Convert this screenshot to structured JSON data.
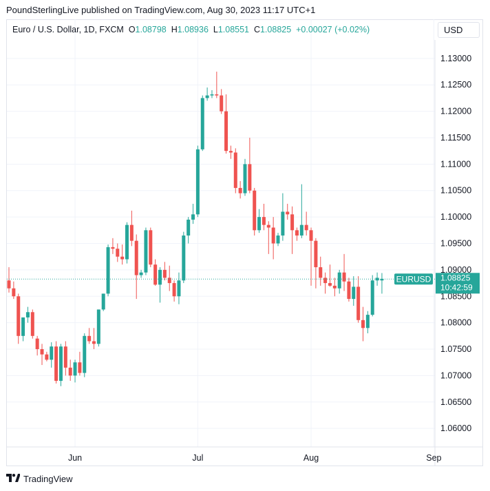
{
  "header": {
    "publisher": "PoundSterlingLive published on TradingView.com, Aug 30, 2023 11:17 UTC+1"
  },
  "legend": {
    "symbol": "Euro / U.S. Dollar, 1D, FXCM",
    "o_label": "O",
    "o_value": "1.08798",
    "h_label": "H",
    "h_value": "1.08936",
    "l_label": "L",
    "l_value": "1.08551",
    "c_label": "C",
    "c_value": "1.08825",
    "change": "+0.00027 (+0.02%)"
  },
  "currency_button": "USD",
  "price_tag": {
    "symbol": "EURUSD",
    "price": "1.08825",
    "countdown": "10:42:59"
  },
  "footer": {
    "brand": "TradingView",
    "logo_icon": "tradingview-logo-icon"
  },
  "colors": {
    "up": "#26a69a",
    "down": "#ef5350",
    "grid": "#f0f3fa",
    "text": "#131722"
  },
  "chart_data": {
    "type": "candlestick",
    "ylim": [
      1.0565,
      1.1335
    ],
    "yticks": [
      "1.13000",
      "1.12500",
      "1.12000",
      "1.11500",
      "1.11000",
      "1.10500",
      "1.10000",
      "1.09500",
      "1.09000",
      "1.08500",
      "1.08000",
      "1.07500",
      "1.07000",
      "1.06500",
      "1.06000"
    ],
    "xticks": [
      {
        "label": "Jun",
        "index": 14
      },
      {
        "label": "Jul",
        "index": 40
      },
      {
        "label": "Aug",
        "index": 64
      },
      {
        "label": "Sep",
        "index": 90
      }
    ],
    "last_price": 1.08825,
    "candles": [
      {
        "o": 1.088,
        "h": 1.0905,
        "l": 1.0857,
        "c": 1.0865
      },
      {
        "o": 1.0865,
        "h": 1.0878,
        "l": 1.0845,
        "c": 1.085
      },
      {
        "o": 1.085,
        "h": 1.0855,
        "l": 1.076,
        "c": 1.0775
      },
      {
        "o": 1.0775,
        "h": 1.081,
        "l": 1.0765,
        "c": 1.081
      },
      {
        "o": 1.081,
        "h": 1.083,
        "l": 1.08,
        "c": 1.082
      },
      {
        "o": 1.082,
        "h": 1.0825,
        "l": 1.077,
        "c": 1.0775
      },
      {
        "o": 1.077,
        "h": 1.0775,
        "l": 1.0738,
        "c": 1.075
      },
      {
        "o": 1.075,
        "h": 1.076,
        "l": 1.072,
        "c": 1.074
      },
      {
        "o": 1.074,
        "h": 1.0745,
        "l": 1.0727,
        "c": 1.073
      },
      {
        "o": 1.073,
        "h": 1.0763,
        "l": 1.0715,
        "c": 1.0755
      },
      {
        "o": 1.0755,
        "h": 1.0765,
        "l": 1.0685,
        "c": 1.069
      },
      {
        "o": 1.069,
        "h": 1.076,
        "l": 1.068,
        "c": 1.0755
      },
      {
        "o": 1.0755,
        "h": 1.0765,
        "l": 1.07,
        "c": 1.0715
      },
      {
        "o": 1.0715,
        "h": 1.073,
        "l": 1.069,
        "c": 1.07
      },
      {
        "o": 1.07,
        "h": 1.073,
        "l": 1.0687,
        "c": 1.0725
      },
      {
        "o": 1.0725,
        "h": 1.0745,
        "l": 1.07,
        "c": 1.0705
      },
      {
        "o": 1.0705,
        "h": 1.078,
        "l": 1.0697,
        "c": 1.0775
      },
      {
        "o": 1.0775,
        "h": 1.079,
        "l": 1.076,
        "c": 1.0765
      },
      {
        "o": 1.0765,
        "h": 1.079,
        "l": 1.075,
        "c": 1.076
      },
      {
        "o": 1.076,
        "h": 1.0825,
        "l": 1.0755,
        "c": 1.0825
      },
      {
        "o": 1.0825,
        "h": 1.0855,
        "l": 1.0822,
        "c": 1.0855
      },
      {
        "o": 1.0855,
        "h": 1.0948,
        "l": 1.085,
        "c": 1.0943
      },
      {
        "o": 1.0943,
        "h": 1.096,
        "l": 1.093,
        "c": 1.094
      },
      {
        "o": 1.094,
        "h": 1.095,
        "l": 1.0915,
        "c": 1.0925
      },
      {
        "o": 1.0925,
        "h": 1.0948,
        "l": 1.091,
        "c": 1.092
      },
      {
        "o": 1.092,
        "h": 1.099,
        "l": 1.0912,
        "c": 1.0985
      },
      {
        "o": 1.0985,
        "h": 1.1012,
        "l": 1.0945,
        "c": 1.0955
      },
      {
        "o": 1.0955,
        "h": 1.0967,
        "l": 1.0845,
        "c": 1.089
      },
      {
        "o": 1.089,
        "h": 1.09,
        "l": 1.0885,
        "c": 1.0895
      },
      {
        "o": 1.0895,
        "h": 1.098,
        "l": 1.089,
        "c": 1.0975
      },
      {
        "o": 1.0975,
        "h": 1.098,
        "l": 1.0905,
        "c": 1.091
      },
      {
        "o": 1.091,
        "h": 1.092,
        "l": 1.087,
        "c": 1.0872
      },
      {
        "o": 1.0872,
        "h": 1.0905,
        "l": 1.0838,
        "c": 1.09
      },
      {
        "o": 1.09,
        "h": 1.0915,
        "l": 1.088,
        "c": 1.0885
      },
      {
        "o": 1.0885,
        "h": 1.0908,
        "l": 1.086,
        "c": 1.0875
      },
      {
        "o": 1.0875,
        "h": 1.088,
        "l": 1.084,
        "c": 1.085
      },
      {
        "o": 1.085,
        "h": 1.0895,
        "l": 1.0835,
        "c": 1.088
      },
      {
        "o": 1.088,
        "h": 1.0972,
        "l": 1.0875,
        "c": 1.0965
      },
      {
        "o": 1.0965,
        "h": 1.1,
        "l": 1.095,
        "c": 1.0995
      },
      {
        "o": 1.0995,
        "h": 1.1025,
        "l": 1.0987,
        "c": 1.1005
      },
      {
        "o": 1.1005,
        "h": 1.1135,
        "l": 1.1,
        "c": 1.1128
      },
      {
        "o": 1.1128,
        "h": 1.123,
        "l": 1.1125,
        "c": 1.1225
      },
      {
        "o": 1.1225,
        "h": 1.1245,
        "l": 1.122,
        "c": 1.123
      },
      {
        "o": 1.123,
        "h": 1.124,
        "l": 1.1225,
        "c": 1.1232
      },
      {
        "o": 1.1232,
        "h": 1.1275,
        "l": 1.1225,
        "c": 1.123
      },
      {
        "o": 1.123,
        "h": 1.1242,
        "l": 1.1195,
        "c": 1.12
      },
      {
        "o": 1.12,
        "h": 1.1232,
        "l": 1.112,
        "c": 1.1125
      },
      {
        "o": 1.1125,
        "h": 1.1135,
        "l": 1.111,
        "c": 1.1122
      },
      {
        "o": 1.1122,
        "h": 1.113,
        "l": 1.1045,
        "c": 1.1055
      },
      {
        "o": 1.1055,
        "h": 1.1068,
        "l": 1.1035,
        "c": 1.1045
      },
      {
        "o": 1.1045,
        "h": 1.111,
        "l": 1.104,
        "c": 1.11
      },
      {
        "o": 1.11,
        "h": 1.115,
        "l": 1.1045,
        "c": 1.105
      },
      {
        "o": 1.105,
        "h": 1.1055,
        "l": 1.0965,
        "c": 1.0975
      },
      {
        "o": 1.0975,
        "h": 1.1015,
        "l": 1.097,
        "c": 1.1
      },
      {
        "o": 1.1,
        "h": 1.1025,
        "l": 1.0975,
        "c": 1.0985
      },
      {
        "o": 1.0985,
        "h": 1.0992,
        "l": 1.093,
        "c": 1.098
      },
      {
        "o": 1.098,
        "h": 1.1,
        "l": 1.092,
        "c": 1.095
      },
      {
        "o": 1.095,
        "h": 1.097,
        "l": 1.0945,
        "c": 1.0965
      },
      {
        "o": 1.0965,
        "h": 1.1045,
        "l": 1.0955,
        "c": 1.101
      },
      {
        "o": 1.101,
        "h": 1.1025,
        "l": 1.0995,
        "c": 1.1005
      },
      {
        "o": 1.1005,
        "h": 1.102,
        "l": 1.093,
        "c": 1.0975
      },
      {
        "o": 1.0975,
        "h": 1.098,
        "l": 1.0955,
        "c": 1.0965
      },
      {
        "o": 1.0965,
        "h": 1.1062,
        "l": 1.096,
        "c": 1.0985
      },
      {
        "o": 1.0985,
        "h": 1.101,
        "l": 1.0965,
        "c": 1.0975
      },
      {
        "o": 1.0975,
        "h": 1.098,
        "l": 1.087,
        "c": 1.0955
      },
      {
        "o": 1.0955,
        "h": 1.096,
        "l": 1.0865,
        "c": 1.0905
      },
      {
        "o": 1.0905,
        "h": 1.0925,
        "l": 1.087,
        "c": 1.0885
      },
      {
        "o": 1.0885,
        "h": 1.0895,
        "l": 1.0855,
        "c": 1.0875
      },
      {
        "o": 1.0875,
        "h": 1.091,
        "l": 1.0868,
        "c": 1.087
      },
      {
        "o": 1.087,
        "h": 1.0885,
        "l": 1.085,
        "c": 1.0865
      },
      {
        "o": 1.0865,
        "h": 1.09,
        "l": 1.0855,
        "c": 1.0895
      },
      {
        "o": 1.0895,
        "h": 1.093,
        "l": 1.086,
        "c": 1.0878
      },
      {
        "o": 1.0878,
        "h": 1.0885,
        "l": 1.084,
        "c": 1.0845
      },
      {
        "o": 1.0845,
        "h": 1.0888,
        "l": 1.0832,
        "c": 1.0868
      },
      {
        "o": 1.0868,
        "h": 1.0888,
        "l": 1.08,
        "c": 1.0805
      },
      {
        "o": 1.0805,
        "h": 1.083,
        "l": 1.0765,
        "c": 1.079
      },
      {
        "o": 1.079,
        "h": 1.0822,
        "l": 1.078,
        "c": 1.0815
      },
      {
        "o": 1.0815,
        "h": 1.089,
        "l": 1.0812,
        "c": 1.088
      },
      {
        "o": 1.088,
        "h": 1.0895,
        "l": 1.087,
        "c": 1.0885
      },
      {
        "o": 1.088,
        "h": 1.0894,
        "l": 1.0855,
        "c": 1.0883
      }
    ]
  }
}
